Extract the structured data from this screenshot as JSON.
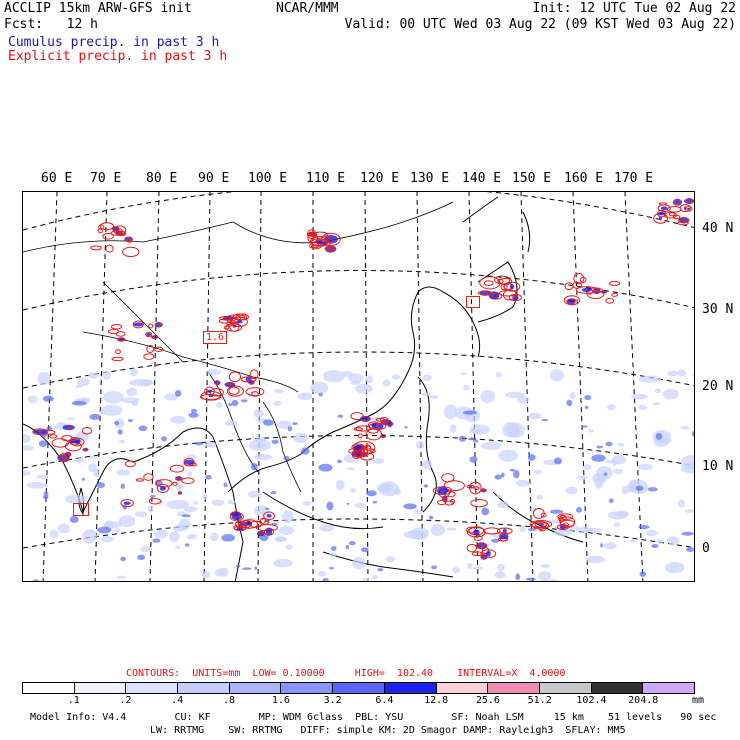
{
  "header": {
    "left_line1": "ACCLIP 15km ARW-GFS init",
    "left_line2": "Fcst:   12 h",
    "center": "NCAR/MMM",
    "right_line1": "Init: 12 UTC Tue 02 Aug 22",
    "right_line2": "Valid: 00 UTC Wed 03 Aug 22 (09 KST Wed 03 Aug 22)",
    "cumulus_label": "Cumulus precip. in past 3 h",
    "explicit_label": "Explicit precip. in past 3 h"
  },
  "map": {
    "lon_labels": [
      "60 E",
      "70 E",
      "80 E",
      "90 E",
      "100 E",
      "110 E",
      "120 E",
      "130 E",
      "140 E",
      "150 E",
      "160 E",
      "170 E"
    ],
    "lat_labels": [
      "40 N",
      "30 N",
      "20 N",
      "10 N",
      "0"
    ],
    "contour_label": "1.6",
    "colors": {
      "explicit_contour": "#e81c1c",
      "cumulus_light": "#c8d2ff",
      "cumulus_mid": "#5a6cf0",
      "cumulus_heavy": "#1a1ae0"
    }
  },
  "contours_info": {
    "text": "CONTOURS:  UNITS=mm  LOW= 0.10000     HIGH=  102.40    INTERVAL=X  4.0000"
  },
  "colorbar": {
    "tick_labels": [
      ".1",
      ".2",
      ".4",
      ".8",
      "1.6",
      "3.2",
      "6.4",
      "12.8",
      "25.6",
      "51.2",
      "102.4",
      "204.8"
    ],
    "units": "mm",
    "colors": [
      "#ffffff",
      "#f0f0ff",
      "#dde2ff",
      "#c6ceff",
      "#aab4ff",
      "#8a94ff",
      "#5a64ff",
      "#2020ee",
      "#ffd0d8",
      "#f08cb4",
      "#c8c8c8",
      "#333333",
      "#cfa8f8"
    ]
  },
  "footer": {
    "line1": "Model Info: V4.4        CU: KF        MP: WDM 6class  PBL: YSU        SF: Noah LSM     15 km    51 levels   90 sec",
    "line2": "LW: RRTMG    SW: RRTMG   DIFF: simple KM: 2D Smagor DAMP: Rayleigh3  SFLAY: MM5"
  }
}
